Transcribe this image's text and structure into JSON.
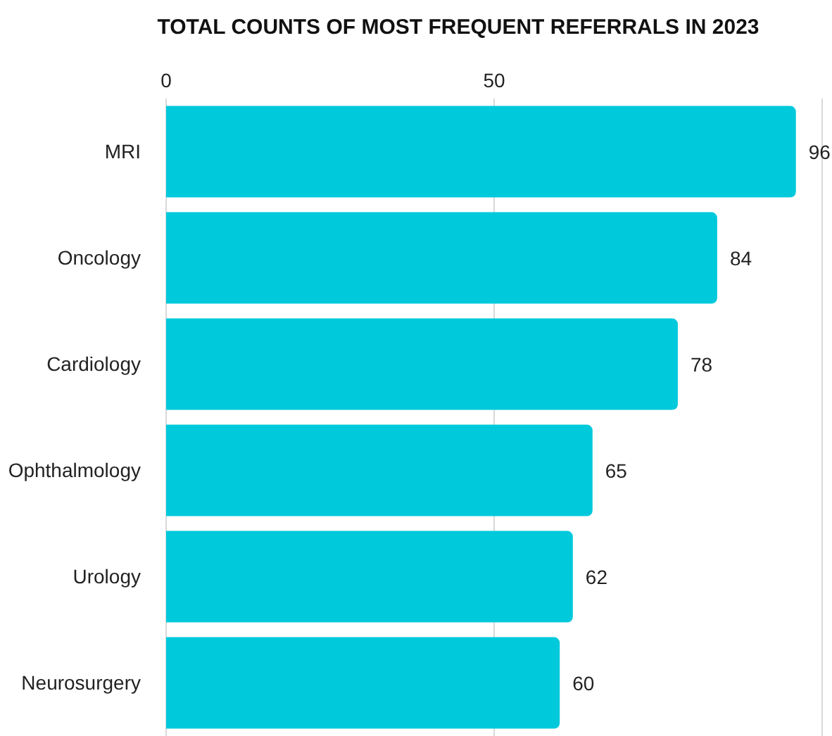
{
  "chart_data": {
    "type": "bar",
    "orientation": "horizontal",
    "title": "TOTAL COUNTS OF MOST FREQUENT REFERRALS IN 2023",
    "categories": [
      "MRI",
      "Oncology",
      "Cardiology",
      "Ophthalmology",
      "Urology",
      "Neurosurgery"
    ],
    "values": [
      96,
      84,
      78,
      65,
      62,
      60
    ],
    "color": "#00c9dc",
    "xlim": [
      0,
      100
    ],
    "xticks": [
      0,
      50
    ],
    "grid": "x",
    "data_labels": true
  }
}
